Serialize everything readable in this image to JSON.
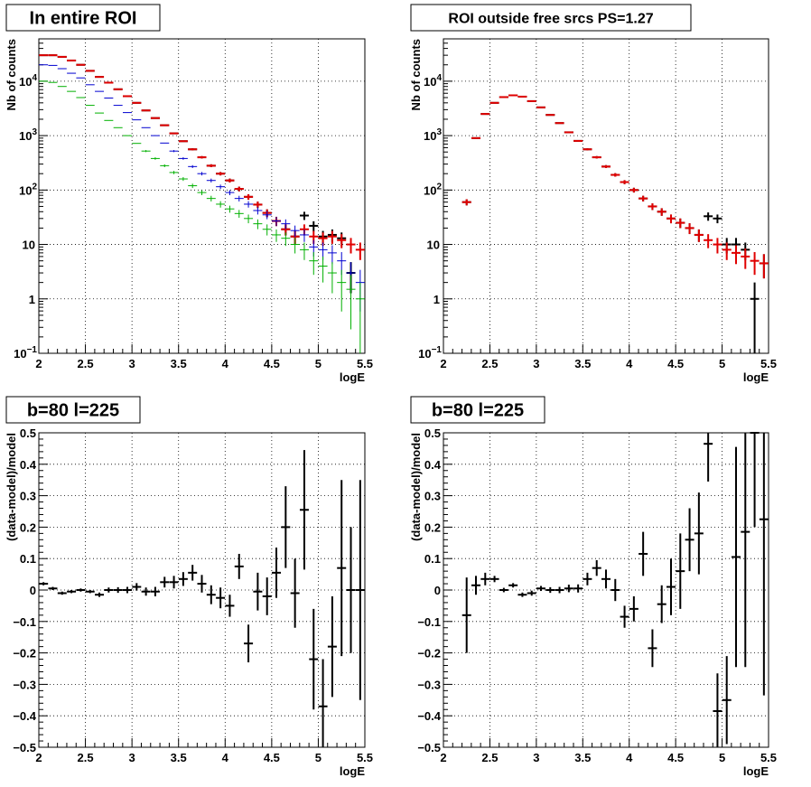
{
  "chart_data": [
    {
      "type": "scatter",
      "title": "In entire ROI",
      "xlabel": "logE",
      "ylabel": "Nb of counts",
      "yscale": "log",
      "xlim": [
        2,
        5.5
      ],
      "ylim": [
        0.1,
        60000
      ],
      "grid": true,
      "x_ticks": [
        "2",
        "2.5",
        "3",
        "3.5",
        "4",
        "4.5",
        "5",
        "5.5"
      ],
      "y_ticks": [
        {
          "value": 0.1,
          "label": "10",
          "exp": "−1"
        },
        {
          "value": 1,
          "label": "1",
          "exp": ""
        },
        {
          "value": 10,
          "label": "10",
          "exp": ""
        },
        {
          "value": 100,
          "label": "10",
          "exp": "2"
        },
        {
          "value": 1000,
          "label": "10",
          "exp": "3"
        },
        {
          "value": 10000,
          "label": "10",
          "exp": "4"
        }
      ],
      "x": [
        2.05,
        2.15,
        2.25,
        2.35,
        2.45,
        2.55,
        2.65,
        2.75,
        2.85,
        2.95,
        3.05,
        3.15,
        3.25,
        3.35,
        3.45,
        3.55,
        3.65,
        3.75,
        3.85,
        3.95,
        4.05,
        4.15,
        4.25,
        4.35,
        4.45,
        4.55,
        4.65,
        4.75,
        4.85,
        4.95,
        5.05,
        5.15,
        5.25,
        5.35,
        5.45
      ],
      "series": [
        {
          "color": "#000000",
          "values": [
            30000,
            30000,
            28000,
            24000,
            20000,
            15500,
            12000,
            9400,
            7100,
            5300,
            4000,
            2900,
            2100,
            1550,
            1100,
            790,
            560,
            400,
            280,
            200,
            150,
            105,
            75,
            54,
            38,
            27,
            19,
            14,
            34,
            22,
            14,
            15,
            13,
            3,
            0
          ]
        },
        {
          "color": "#e00000",
          "values": [
            30000,
            30000,
            28000,
            24000,
            20000,
            15500,
            12000,
            9400,
            7100,
            5300,
            4000,
            2900,
            2100,
            1550,
            1100,
            790,
            560,
            400,
            280,
            200,
            150,
            105,
            75,
            54,
            38,
            27,
            19,
            14,
            19,
            14,
            13,
            14,
            12,
            10,
            8
          ]
        },
        {
          "color": "#0000d0",
          "values": [
            20000,
            19500,
            17000,
            14000,
            11500,
            8600,
            6500,
            4900,
            3600,
            2650,
            1950,
            1400,
            1000,
            730,
            520,
            380,
            270,
            200,
            150,
            115,
            90,
            70,
            55,
            42,
            35,
            27,
            24,
            18,
            15,
            9,
            8,
            7,
            5,
            3,
            2
          ]
        },
        {
          "color": "#00b000",
          "values": [
            10000,
            9500,
            8000,
            6500,
            5000,
            3600,
            2600,
            1900,
            1400,
            1000,
            720,
            520,
            380,
            280,
            210,
            160,
            120,
            90,
            70,
            55,
            45,
            37,
            30,
            24,
            19,
            15,
            13,
            10,
            8,
            5,
            4,
            3,
            2,
            1.5,
            1
          ]
        }
      ]
    },
    {
      "type": "scatter",
      "title": "ROI outside free srcs PS=1.27",
      "xlabel": "logE",
      "ylabel": "Nb of counts",
      "yscale": "log",
      "xlim": [
        2,
        5.5
      ],
      "ylim": [
        0.1,
        60000
      ],
      "grid": true,
      "x_ticks": [
        "2",
        "2.5",
        "3",
        "3.5",
        "4",
        "4.5",
        "5",
        "5.5"
      ],
      "y_ticks": [
        {
          "value": 0.1,
          "label": "10",
          "exp": "−1"
        },
        {
          "value": 1,
          "label": "1",
          "exp": ""
        },
        {
          "value": 10,
          "label": "10",
          "exp": ""
        },
        {
          "value": 100,
          "label": "10",
          "exp": "2"
        },
        {
          "value": 1000,
          "label": "10",
          "exp": "3"
        },
        {
          "value": 10000,
          "label": "10",
          "exp": "4"
        }
      ],
      "x": [
        2.25,
        2.35,
        2.45,
        2.55,
        2.65,
        2.75,
        2.85,
        2.95,
        3.05,
        3.15,
        3.25,
        3.35,
        3.45,
        3.55,
        3.65,
        3.75,
        3.85,
        3.95,
        4.05,
        4.15,
        4.25,
        4.35,
        4.45,
        4.55,
        4.65,
        4.75,
        4.85,
        4.95,
        5.05,
        5.15,
        5.25,
        5.35,
        5.45
      ],
      "series": [
        {
          "color": "#000000",
          "values": [
            60,
            900,
            2500,
            4000,
            5100,
            5500,
            5200,
            4300,
            3300,
            2400,
            1700,
            1150,
            800,
            560,
            400,
            270,
            190,
            140,
            100,
            70,
            50,
            40,
            30,
            25,
            20,
            15,
            33,
            30,
            10,
            10,
            8,
            1,
            4.5
          ]
        },
        {
          "color": "#e00000",
          "values": [
            60,
            900,
            2500,
            4000,
            5100,
            5500,
            5200,
            4300,
            3300,
            2400,
            1700,
            1150,
            800,
            560,
            400,
            270,
            190,
            140,
            100,
            70,
            50,
            40,
            30,
            25,
            20,
            15,
            12,
            10,
            8,
            7,
            6,
            5,
            4.5
          ]
        }
      ]
    },
    {
      "type": "scatter",
      "title": "b=80 l=225",
      "xlabel": "logE",
      "ylabel": "(data-model)/model",
      "xlim": [
        2,
        5.5
      ],
      "ylim": [
        -0.5,
        0.5
      ],
      "grid": true,
      "x_ticks": [
        "2",
        "2.5",
        "3",
        "3.5",
        "4",
        "4.5",
        "5",
        "5.5"
      ],
      "y_ticks": [
        {
          "value": -0.5,
          "label": "−0.5"
        },
        {
          "value": -0.4,
          "label": "−0.4"
        },
        {
          "value": -0.3,
          "label": "−0.3"
        },
        {
          "value": -0.2,
          "label": "−0.2"
        },
        {
          "value": -0.1,
          "label": "−0.1"
        },
        {
          "value": 0,
          "label": "0"
        },
        {
          "value": 0.1,
          "label": "0.1"
        },
        {
          "value": 0.2,
          "label": "0.2"
        },
        {
          "value": 0.3,
          "label": "0.3"
        },
        {
          "value": 0.4,
          "label": "0.4"
        },
        {
          "value": 0.5,
          "label": "0.5"
        }
      ],
      "x": [
        2.05,
        2.15,
        2.25,
        2.35,
        2.45,
        2.55,
        2.65,
        2.75,
        2.85,
        2.95,
        3.05,
        3.15,
        3.25,
        3.35,
        3.45,
        3.55,
        3.65,
        3.75,
        3.85,
        3.95,
        4.05,
        4.15,
        4.25,
        4.35,
        4.45,
        4.55,
        4.65,
        4.75,
        4.85,
        4.95,
        5.05,
        5.15,
        5.25,
        5.35,
        5.45
      ],
      "values": [
        0.02,
        0.005,
        -0.01,
        -0.005,
        0.0,
        -0.005,
        -0.015,
        0.0,
        0.0,
        0.0,
        0.01,
        -0.005,
        -0.005,
        0.025,
        0.025,
        0.035,
        0.055,
        0.02,
        -0.015,
        -0.025,
        -0.05,
        0.075,
        -0.17,
        -0.005,
        -0.02,
        0.055,
        0.2,
        -0.01,
        0.255,
        -0.22,
        -0.37,
        -0.18,
        0.07,
        0.0,
        0.0
      ],
      "errors": [
        0.005,
        0.005,
        0.005,
        0.005,
        0.005,
        0.005,
        0.007,
        0.008,
        0.009,
        0.01,
        0.012,
        0.013,
        0.015,
        0.017,
        0.02,
        0.022,
        0.025,
        0.028,
        0.03,
        0.033,
        0.035,
        0.04,
        0.06,
        0.06,
        0.06,
        0.08,
        0.13,
        0.11,
        0.19,
        0.16,
        0.15,
        0.16,
        0.28,
        0.2,
        0.35
      ]
    },
    {
      "type": "scatter",
      "title": "b=80 l=225",
      "xlabel": "logE",
      "ylabel": "(data-model)/model",
      "xlim": [
        2,
        5.5
      ],
      "ylim": [
        -0.5,
        0.5
      ],
      "grid": true,
      "x_ticks": [
        "2",
        "2.5",
        "3",
        "3.5",
        "4",
        "4.5",
        "5",
        "5.5"
      ],
      "y_ticks": [
        {
          "value": -0.5,
          "label": "−0.5"
        },
        {
          "value": -0.4,
          "label": "−0.4"
        },
        {
          "value": -0.3,
          "label": "−0.3"
        },
        {
          "value": -0.2,
          "label": "−0.2"
        },
        {
          "value": -0.1,
          "label": "−0.1"
        },
        {
          "value": 0,
          "label": "0"
        },
        {
          "value": 0.1,
          "label": "0.1"
        },
        {
          "value": 0.2,
          "label": "0.2"
        },
        {
          "value": 0.3,
          "label": "0.3"
        },
        {
          "value": 0.4,
          "label": "0.4"
        },
        {
          "value": 0.5,
          "label": "0.5"
        }
      ],
      "x": [
        2.25,
        2.35,
        2.45,
        2.55,
        2.65,
        2.75,
        2.85,
        2.95,
        3.05,
        3.15,
        3.25,
        3.35,
        3.45,
        3.55,
        3.65,
        3.75,
        3.85,
        3.95,
        4.05,
        4.15,
        4.25,
        4.35,
        4.45,
        4.55,
        4.65,
        4.75,
        4.85,
        4.95,
        5.05,
        5.15,
        5.25,
        5.35,
        5.45
      ],
      "values": [
        -0.08,
        0.015,
        0.035,
        0.035,
        0.0,
        0.015,
        -0.015,
        -0.01,
        0.005,
        0.0,
        0.0,
        0.005,
        0.005,
        0.035,
        0.07,
        0.035,
        0.0,
        -0.085,
        -0.06,
        0.115,
        -0.185,
        -0.045,
        0.01,
        0.06,
        0.16,
        0.18,
        0.465,
        -0.385,
        -0.35,
        0.105,
        0.185,
        0.5,
        0.225
      ],
      "errors": [
        0.12,
        0.03,
        0.02,
        0.01,
        0.007,
        0.007,
        0.007,
        0.008,
        0.008,
        0.009,
        0.01,
        0.012,
        0.013,
        0.02,
        0.025,
        0.03,
        0.035,
        0.035,
        0.04,
        0.07,
        0.06,
        0.06,
        0.09,
        0.12,
        0.1,
        0.13,
        0.12,
        0.12,
        0.14,
        0.35,
        0.43,
        0.3,
        0.56
      ]
    }
  ]
}
